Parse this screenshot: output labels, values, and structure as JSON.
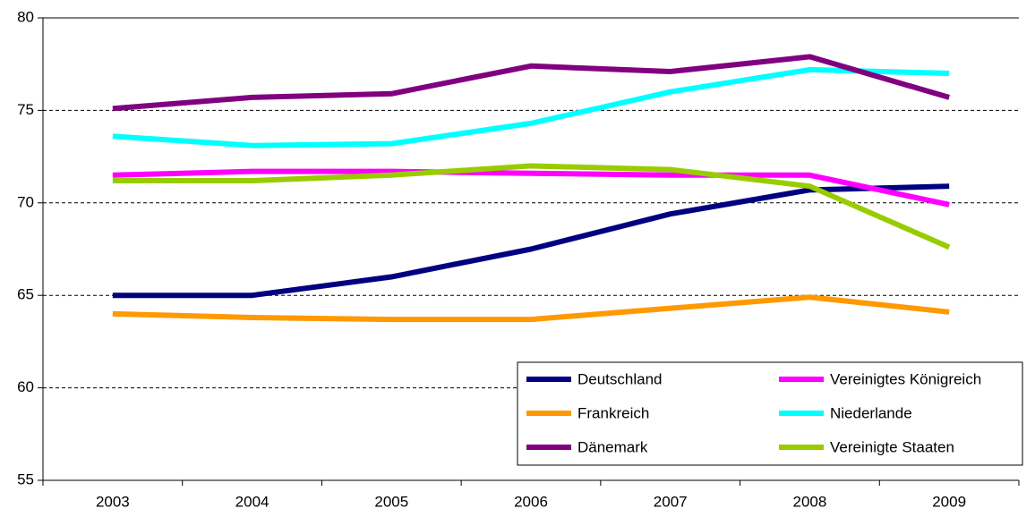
{
  "chart_data": {
    "type": "line",
    "categories": [
      "2003",
      "2004",
      "2005",
      "2006",
      "2007",
      "2008",
      "2009"
    ],
    "series": [
      {
        "name": "Deutschland",
        "color": "#000080",
        "values": [
          65.0,
          65.0,
          66.0,
          67.5,
          69.4,
          70.7,
          70.9
        ]
      },
      {
        "name": "Vereinigtes Königreich",
        "color": "#ff00ff",
        "values": [
          71.5,
          71.7,
          71.7,
          71.6,
          71.5,
          71.5,
          69.9
        ]
      },
      {
        "name": "Frankreich",
        "color": "#ff9900",
        "values": [
          64.0,
          63.8,
          63.7,
          63.7,
          64.3,
          64.9,
          64.1
        ]
      },
      {
        "name": "Niederlande",
        "color": "#00ffff",
        "values": [
          73.6,
          73.1,
          73.2,
          74.3,
          76.0,
          77.2,
          77.0
        ]
      },
      {
        "name": "Dänemark",
        "color": "#800080",
        "values": [
          75.1,
          75.7,
          75.9,
          77.4,
          77.1,
          77.9,
          75.7
        ]
      },
      {
        "name": "Vereinigte Staaten",
        "color": "#99cc00",
        "values": [
          71.2,
          71.2,
          71.5,
          72.0,
          71.8,
          70.9,
          67.6
        ]
      }
    ],
    "ylim": [
      55,
      80
    ],
    "yticks": [
      55,
      60,
      65,
      70,
      75,
      80
    ],
    "grid": true,
    "legend": "bottom-right"
  }
}
